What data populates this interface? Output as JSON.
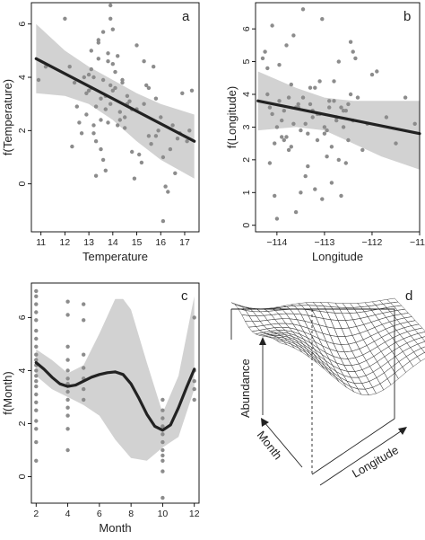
{
  "chart_data": [
    {
      "panel": "a",
      "type": "line",
      "xlabel": "Temperature",
      "ylabel": "f(Temperature)",
      "xlim": [
        10.6,
        17.6
      ],
      "ylim": [
        -1.8,
        6.8
      ],
      "xticks": [
        11,
        12,
        13,
        14,
        15,
        16,
        17
      ],
      "yticks": [
        0,
        2,
        4,
        6
      ],
      "fit": {
        "x": [
          10.8,
          17.4
        ],
        "y": [
          4.7,
          1.6
        ]
      },
      "band_upper": {
        "x": [
          10.8,
          12,
          13,
          14,
          15,
          16,
          17.4
        ],
        "y": [
          6.0,
          5.0,
          4.4,
          3.9,
          3.4,
          3.0,
          2.6
        ]
      },
      "band_lower": {
        "x": [
          10.8,
          12,
          13,
          14,
          15,
          16,
          17.4
        ],
        "y": [
          3.4,
          3.3,
          3.0,
          2.4,
          1.6,
          0.9,
          0.2
        ]
      },
      "points": {
        "x": [
          10.9,
          11.2,
          12.0,
          12.3,
          12.4,
          12.5,
          12.7,
          12.8,
          12.9,
          13.0,
          13.1,
          13.2,
          13.3,
          13.4,
          13.5,
          13.6,
          13.7,
          13.8,
          13.9,
          14.0,
          13.0,
          13.1,
          13.3,
          13.5,
          13.7,
          13.9,
          14.1,
          14.3,
          14.5,
          14.7,
          12.9,
          13.2,
          13.4,
          13.6,
          13.8,
          14.0,
          14.2,
          14.4,
          14.6,
          14.8,
          13.1,
          13.4,
          13.6,
          13.8,
          14.0,
          13.3,
          13.5,
          13.7,
          13.2,
          13.9,
          14.2,
          14.5,
          14.9,
          15.1,
          15.3,
          15.5,
          15.7,
          15.9,
          16.1,
          16.3,
          16.5,
          16.7,
          16.9,
          17.1,
          17.3,
          14.1,
          14.4,
          14.6,
          15.0,
          15.2,
          15.6,
          16.0,
          16.2,
          16.4,
          16.6,
          15.4,
          15.8,
          16.8,
          17.2,
          12.6,
          12.2,
          14.8,
          15.0,
          15.3,
          16.1,
          13.9,
          14.3,
          15.8,
          15.5
        ],
        "y": [
          3.9,
          4.4,
          6.2,
          1.4,
          3.8,
          2.9,
          1.9,
          4.0,
          2.6,
          3.5,
          4.3,
          2.2,
          1.6,
          5.3,
          3.2,
          0.9,
          2.8,
          4.6,
          3.7,
          5.8,
          4.1,
          3.6,
          2.9,
          2.4,
          3.3,
          3.0,
          4.2,
          2.7,
          2.5,
          3.1,
          3.4,
          4.0,
          4.7,
          3.9,
          2.3,
          3.5,
          2.2,
          3.9,
          3.0,
          2.8,
          5.0,
          5.4,
          5.7,
          4.9,
          4.5,
          0.3,
          1.3,
          0.5,
          1.9,
          6.2,
          4.8,
          2.1,
          0.2,
          1.1,
          3.0,
          1.8,
          4.4,
          2.0,
          1.0,
          -0.3,
          2.2,
          1.7,
          3.4,
          1.6,
          3.5,
          3.6,
          3.8,
          3.3,
          2.8,
          0.8,
          1.5,
          2.5,
          -0.1,
          1.3,
          0.4,
          3.7,
          3.2,
          1.9,
          2.0,
          2.3,
          4.4,
          1.2,
          5.2,
          4.6,
          -1.4,
          6.7,
          2.4,
          1.8,
          3.6
        ]
      }
    },
    {
      "panel": "b",
      "type": "line",
      "xlabel": "Longitude",
      "ylabel": "f(Longitude)",
      "xlim": [
        -114.45,
        -111.0
      ],
      "ylim": [
        -0.2,
        6.8
      ],
      "xticks": [
        -114,
        -113,
        -112,
        -111
      ],
      "xtick_labels": [
        "−114",
        "−113",
        "−112",
        "−111"
      ],
      "yticks": [
        0,
        1,
        2,
        3,
        4,
        5,
        6
      ],
      "fit": {
        "x": [
          -114.4,
          -111.0
        ],
        "y": [
          3.8,
          2.8
        ]
      },
      "band_upper": {
        "x": [
          -114.4,
          -113.6,
          -113.0,
          -112.4,
          -111.8,
          -111.0
        ],
        "y": [
          4.7,
          4.2,
          3.9,
          3.8,
          3.8,
          3.8
        ]
      },
      "band_lower": {
        "x": [
          -114.4,
          -113.6,
          -113.0,
          -112.4,
          -111.8,
          -111.0
        ],
        "y": [
          2.9,
          3.0,
          2.9,
          2.5,
          2.1,
          1.7
        ]
      },
      "points": {
        "x": [
          -114.3,
          -114.2,
          -114.15,
          -114.1,
          -114.05,
          -114.0,
          -113.95,
          -113.9,
          -113.85,
          -113.8,
          -113.75,
          -113.7,
          -113.65,
          -113.6,
          -113.55,
          -113.5,
          -113.45,
          -113.4,
          -113.35,
          -113.3,
          -113.25,
          -113.2,
          -113.15,
          -113.1,
          -113.05,
          -113.0,
          -112.95,
          -112.9,
          -112.85,
          -112.8,
          -112.75,
          -112.7,
          -112.65,
          -112.6,
          -112.55,
          -112.5,
          -112.45,
          -112.4,
          -112.3,
          -112.2,
          -112.1,
          -112.0,
          -111.9,
          -111.7,
          -111.5,
          -111.3,
          -111.1,
          -114.25,
          -114.1,
          -113.95,
          -113.8,
          -113.6,
          -113.45,
          -113.3,
          -113.15,
          -113.0,
          -112.85,
          -112.7,
          -112.55,
          -112.4,
          -114.2,
          -114.05,
          -113.9,
          -113.75,
          -113.55,
          -113.35,
          -113.2,
          -113.05,
          -112.9,
          -112.75,
          -112.6,
          -112.45,
          -114.0,
          -113.7,
          -113.4,
          -113.1,
          -112.8,
          -112.5,
          -113.85,
          -113.5,
          -113.25,
          -112.95,
          -112.65,
          -114.15,
          -113.65,
          -112.35
        ],
        "y": [
          5.1,
          4.0,
          3.6,
          3.4,
          2.5,
          3.0,
          3.8,
          3.2,
          3.5,
          2.7,
          2.3,
          4.3,
          3.1,
          0.4,
          3.7,
          2.9,
          3.9,
          1.5,
          2.8,
          4.2,
          3.3,
          1.1,
          2.6,
          3.4,
          0.8,
          3.0,
          2.1,
          3.6,
          1.3,
          4.4,
          3.2,
          2.0,
          0.9,
          3.5,
          1.9,
          3.7,
          4.0,
          5.3,
          3.9,
          2.3,
          3.1,
          4.6,
          4.7,
          3.3,
          2.5,
          3.9,
          3.1,
          5.3,
          6.1,
          4.9,
          5.5,
          3.6,
          6.6,
          3.7,
          3.4,
          2.8,
          2.4,
          5.0,
          3.5,
          3.2,
          4.8,
          0.9,
          2.7,
          3.9,
          3.6,
          1.8,
          4.2,
          6.3,
          3.8,
          3.3,
          3.0,
          5.6,
          0.2,
          2.4,
          3.1,
          4.4,
          3.8,
          2.6,
          2.6,
          1.0,
          3.5,
          2.9,
          3.6,
          1.9,
          5.8,
          5.1
        ]
      }
    },
    {
      "panel": "c",
      "type": "line",
      "xlabel": "Month",
      "ylabel": "f(Month)",
      "xlim": [
        1.7,
        12.3
      ],
      "ylim": [
        -1.0,
        7.3
      ],
      "xticks": [
        2,
        4,
        6,
        8,
        10,
        12
      ],
      "yticks": [
        0,
        2,
        4,
        6
      ],
      "fit": {
        "x": [
          2,
          2.5,
          3,
          3.5,
          4,
          4.5,
          5,
          5.5,
          6,
          6.5,
          7,
          7.5,
          8,
          8.5,
          9,
          9.5,
          10,
          10.5,
          11,
          11.5,
          12
        ],
        "y": [
          4.3,
          4.05,
          3.75,
          3.5,
          3.4,
          3.45,
          3.6,
          3.75,
          3.85,
          3.92,
          3.95,
          3.85,
          3.5,
          2.95,
          2.35,
          1.9,
          1.75,
          1.95,
          2.6,
          3.35,
          4.05
        ]
      },
      "band_upper": {
        "x": [
          2,
          3,
          4,
          5,
          6,
          7,
          7.5,
          8,
          9,
          10,
          11,
          12
        ],
        "y": [
          4.8,
          4.4,
          3.9,
          4.2,
          5.4,
          6.7,
          6.7,
          6.3,
          4.3,
          2.4,
          3.8,
          6.8
        ]
      },
      "band_lower": {
        "x": [
          2,
          3,
          4,
          5,
          6,
          7,
          8,
          9,
          10,
          11,
          12
        ],
        "y": [
          3.8,
          3.3,
          3.0,
          2.7,
          2.3,
          1.4,
          0.7,
          0.6,
          1.1,
          1.5,
          3.3
        ]
      },
      "points": {
        "x": [
          2,
          2,
          2,
          2,
          2,
          2,
          2,
          2,
          2,
          2,
          2,
          2,
          2,
          2,
          2,
          2,
          2,
          2,
          2,
          2,
          2,
          2,
          4,
          4,
          4,
          4,
          4,
          4,
          4,
          4,
          4,
          4,
          4,
          4,
          4,
          5,
          5,
          5,
          5,
          5,
          5,
          5,
          10,
          10,
          10,
          10,
          10,
          10,
          10,
          10,
          10,
          10,
          10,
          12,
          12,
          12,
          12,
          12
        ],
        "y": [
          7.0,
          6.8,
          6.5,
          6.2,
          5.9,
          5.5,
          5.2,
          4.9,
          4.6,
          4.4,
          4.2,
          4.0,
          3.8,
          3.6,
          3.4,
          3.1,
          2.8,
          2.5,
          2.1,
          1.8,
          1.3,
          0.6,
          6.6,
          6.1,
          4.9,
          4.4,
          4.0,
          3.7,
          3.5,
          3.2,
          2.9,
          2.6,
          2.3,
          1.8,
          1.0,
          6.5,
          5.9,
          4.6,
          4.1,
          3.7,
          3.3,
          2.9,
          2.9,
          2.5,
          2.2,
          1.9,
          1.6,
          1.3,
          1.0,
          0.8,
          0.6,
          0.2,
          -0.8,
          6.0,
          4.0,
          3.6,
          3.3,
          2.9
        ]
      }
    },
    {
      "panel": "d",
      "type": "surface",
      "xlabel": "Longitude",
      "ylabel": "Month",
      "zlabel": "Abundance"
    }
  ]
}
